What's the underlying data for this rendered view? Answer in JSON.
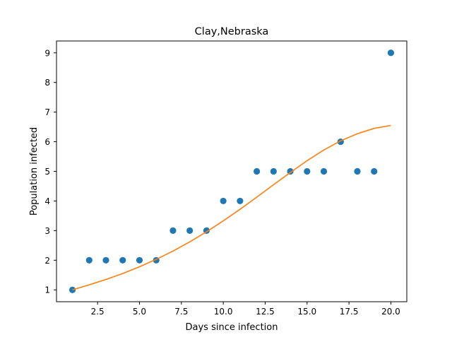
{
  "chart_data": {
    "type": "scatter",
    "title": "Clay,Nebraska",
    "xlabel": "Days since infection",
    "ylabel": "Population infected",
    "xlim": [
      0.05,
      20.95
    ],
    "ylim": [
      0.6,
      9.4
    ],
    "grid": false,
    "x_ticks": [
      "2.5",
      "5.0",
      "7.5",
      "10.0",
      "12.5",
      "15.0",
      "17.5",
      "20.0"
    ],
    "y_ticks": [
      "1",
      "2",
      "3",
      "4",
      "5",
      "6",
      "7",
      "8",
      "9"
    ],
    "series": [
      {
        "kind": "scatter",
        "color": "#1f77b4",
        "x": [
          1,
          2,
          3,
          4,
          5,
          6,
          7,
          8,
          9,
          10,
          11,
          12,
          13,
          14,
          15,
          16,
          17,
          18,
          19,
          20
        ],
        "y": [
          1,
          2,
          2,
          2,
          2,
          2,
          3,
          3,
          3,
          4,
          4,
          5,
          5,
          5,
          5,
          5,
          6,
          5,
          5,
          9
        ]
      },
      {
        "kind": "line",
        "color": "#ff7f0e",
        "x": [
          1,
          2,
          3,
          4,
          5,
          6,
          7,
          8,
          9,
          10,
          11,
          12,
          13,
          14,
          15,
          16,
          17,
          18,
          19,
          20
        ],
        "y": [
          1.0,
          1.17,
          1.35,
          1.55,
          1.78,
          2.03,
          2.31,
          2.62,
          2.96,
          3.33,
          3.72,
          4.13,
          4.55,
          4.96,
          5.36,
          5.72,
          6.03,
          6.27,
          6.45,
          6.55
        ]
      }
    ]
  }
}
